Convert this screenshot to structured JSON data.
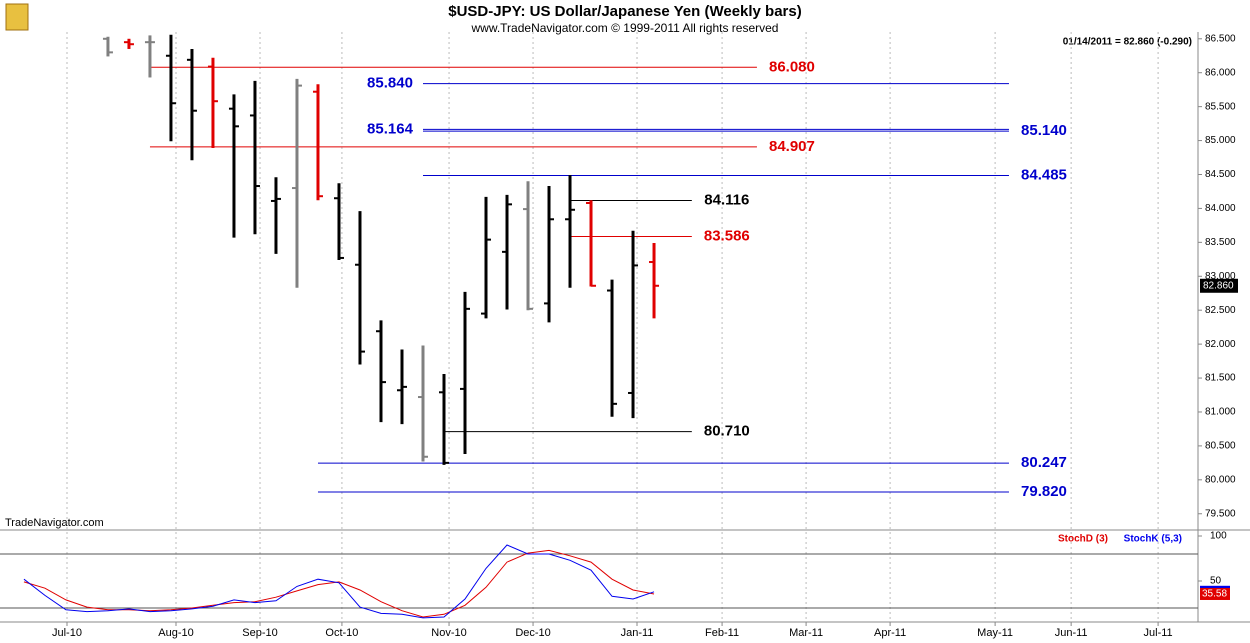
{
  "chart_data": {
    "type": "ohlc",
    "title": "$USD-JPY:  US Dollar/Japanese Yen  (Weekly bars)",
    "subtitle": "www.TradeNavigator.com © 1999-2011 All rights reserved",
    "quote": "01/14/2011 = 82.860 (-0.290)",
    "watermark": "TradeNavigator.com",
    "xlim": [
      -5.14,
      51.9
    ],
    "xticks": [
      {
        "value": -1.95,
        "label": "Jul-10"
      },
      {
        "value": 3.24,
        "label": "Aug-10"
      },
      {
        "value": 7.24,
        "label": "Sep-10"
      },
      {
        "value": 11.14,
        "label": "Oct-10"
      },
      {
        "value": 16.24,
        "label": "Nov-10"
      },
      {
        "value": 20.24,
        "label": "Dec-10"
      },
      {
        "value": 25.19,
        "label": "Jan-11"
      },
      {
        "value": 29.24,
        "label": "Feb-11"
      },
      {
        "value": 33.24,
        "label": "Mar-11"
      },
      {
        "value": 37.24,
        "label": "Apr-11"
      },
      {
        "value": 42.24,
        "label": "May-11"
      },
      {
        "value": 45.86,
        "label": "Jun-11"
      },
      {
        "value": 50.0,
        "label": "Jul-11"
      }
    ],
    "ylim": [
      79.29,
      86.6
    ],
    "yticks": [
      {
        "value": 79.5,
        "label": "79.500"
      },
      {
        "value": 80.0,
        "label": "80.000"
      },
      {
        "value": 80.5,
        "label": "80.500"
      },
      {
        "value": 81.0,
        "label": "81.000"
      },
      {
        "value": 81.5,
        "label": "81.500"
      },
      {
        "value": 82.0,
        "label": "82.000"
      },
      {
        "value": 82.5,
        "label": "82.500"
      },
      {
        "value": 83.0,
        "label": "83.000"
      },
      {
        "value": 83.5,
        "label": "83.500"
      },
      {
        "value": 84.0,
        "label": "84.000"
      },
      {
        "value": 84.5,
        "label": "84.500"
      },
      {
        "value": 85.0,
        "label": "85.000"
      },
      {
        "value": 85.5,
        "label": "85.500"
      },
      {
        "value": 86.0,
        "label": "86.000"
      },
      {
        "value": 86.5,
        "label": "86.500"
      }
    ],
    "price_box": {
      "value": 82.86,
      "label": "82.860"
    },
    "bars": {
      "x": [
        0,
        1,
        2,
        3,
        4,
        5,
        6,
        7,
        8,
        9,
        10,
        11,
        12,
        13,
        14,
        15,
        16,
        17,
        18,
        19,
        20,
        21,
        22,
        23,
        24,
        25,
        26
      ],
      "open": [
        86.5,
        86.45,
        86.45,
        86.25,
        86.19,
        86.09,
        85.47,
        85.37,
        84.11,
        84.3,
        85.72,
        84.15,
        83.17,
        82.19,
        81.32,
        81.22,
        81.29,
        81.34,
        82.45,
        83.36,
        83.99,
        82.6,
        83.84,
        84.08,
        82.79,
        81.28,
        83.21
      ],
      "high": [
        86.53,
        86.5,
        86.55,
        86.56,
        86.35,
        86.22,
        85.68,
        85.88,
        84.46,
        85.91,
        85.83,
        84.37,
        83.96,
        82.35,
        81.92,
        81.98,
        81.56,
        82.77,
        84.17,
        84.2,
        84.4,
        84.33,
        84.49,
        84.12,
        82.95,
        83.67,
        83.49
      ],
      "low": [
        86.24,
        86.35,
        85.93,
        84.99,
        84.71,
        84.89,
        83.57,
        83.62,
        83.33,
        82.83,
        84.12,
        83.24,
        81.7,
        80.85,
        80.82,
        80.27,
        80.22,
        80.38,
        82.38,
        82.51,
        82.5,
        82.32,
        82.83,
        82.85,
        80.93,
        80.91,
        82.38
      ],
      "close": [
        86.3,
        86.42,
        86.45,
        85.55,
        85.44,
        85.58,
        85.21,
        84.33,
        84.14,
        85.81,
        84.18,
        83.27,
        81.89,
        81.44,
        81.37,
        80.34,
        80.25,
        82.52,
        83.54,
        84.06,
        82.52,
        83.84,
        83.98,
        82.86,
        81.12,
        83.16,
        82.86
      ],
      "colors": [
        "#808080",
        "#e00000",
        "#808080",
        "#000000",
        "#000000",
        "#e00000",
        "#000000",
        "#000000",
        "#000000",
        "#808080",
        "#e00000",
        "#000000",
        "#000000",
        "#000000",
        "#000000",
        "#808080",
        "#000000",
        "#000000",
        "#000000",
        "#000000",
        "#808080",
        "#000000",
        "#000000",
        "#e00000",
        "#000000",
        "#000000",
        "#e00000"
      ]
    },
    "levels": [
      {
        "value": 86.08,
        "label": "86.080",
        "color": "#e00000",
        "from": 2,
        "to": 30.9,
        "label_side": "right"
      },
      {
        "value": 85.84,
        "label": "85.840",
        "color": "#0000cc",
        "from": 15,
        "to": 42.9,
        "label_side": "left"
      },
      {
        "value": 85.164,
        "label": "85.164",
        "color": "#0000cc",
        "from": 15,
        "to": 42.9,
        "label_side": "left"
      },
      {
        "value": 85.14,
        "label": "85.140",
        "color": "#0000cc",
        "from": 15,
        "to": 42.9,
        "label_side": "right"
      },
      {
        "value": 84.907,
        "label": "84.907",
        "color": "#e00000",
        "from": 2,
        "to": 30.9,
        "label_side": "right"
      },
      {
        "value": 84.485,
        "label": "84.485",
        "color": "#0000cc",
        "from": 15,
        "to": 42.9,
        "label_side": "right"
      },
      {
        "value": 84.116,
        "label": "84.116",
        "color": "#000000",
        "from": 22,
        "to": 27.8,
        "label_side": "right"
      },
      {
        "value": 83.586,
        "label": "83.586",
        "color": "#e00000",
        "from": 22,
        "to": 27.8,
        "label_side": "right"
      },
      {
        "value": 80.71,
        "label": "80.710",
        "color": "#000000",
        "from": 16,
        "to": 27.8,
        "label_side": "right"
      },
      {
        "value": 80.247,
        "label": "80.247",
        "color": "#0000cc",
        "from": 10,
        "to": 42.9,
        "label_side": "right"
      },
      {
        "value": 79.82,
        "label": "79.820",
        "color": "#0000cc",
        "from": 10,
        "to": 42.9,
        "label_side": "right"
      }
    ],
    "stochastic": {
      "ylim": [
        0,
        100
      ],
      "yticks": [
        100,
        50
      ],
      "ref_lines": [
        80,
        20
      ],
      "x": [
        -4,
        -3,
        -2,
        -1,
        0,
        1,
        2,
        3,
        4,
        5,
        6,
        7,
        8,
        9,
        10,
        11,
        12,
        13,
        14,
        15,
        16,
        17,
        18,
        19,
        20,
        21,
        22,
        23,
        24,
        25,
        26
      ],
      "series": [
        {
          "name": "StochD (3)",
          "color": "#e00000",
          "values": [
            49,
            42,
            29,
            21,
            18,
            18,
            17,
            18,
            20,
            23,
            26,
            27,
            32,
            39,
            46,
            49,
            40,
            27,
            17,
            10,
            13,
            23,
            43,
            71,
            81,
            84,
            78,
            71,
            52,
            40,
            35.58
          ]
        },
        {
          "name": "StochK (5,3)",
          "color": "#0000ee",
          "values": [
            52,
            34,
            18,
            16,
            17,
            19,
            16,
            17,
            19,
            22,
            29,
            26,
            28,
            44,
            52,
            48,
            21,
            14,
            13,
            9,
            10,
            30,
            64,
            90,
            80,
            80,
            73,
            62,
            33,
            30,
            38
          ]
        }
      ]
    }
  }
}
